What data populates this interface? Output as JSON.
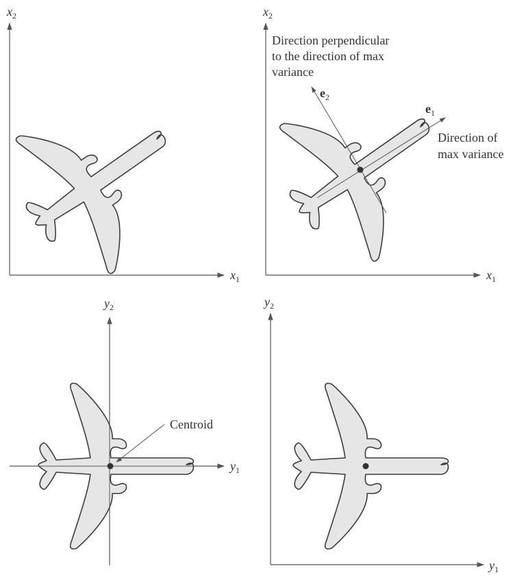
{
  "panels": {
    "top_left": {
      "x_axis": "x",
      "x_axis_sub": "1",
      "y_axis": "x",
      "y_axis_sub": "2"
    },
    "top_right": {
      "x_axis": "x",
      "x_axis_sub": "1",
      "y_axis": "x",
      "y_axis_sub": "2",
      "perp_label": [
        "Direction perpendicular",
        "to the direction of max",
        "variance"
      ],
      "max_label": [
        "Direction of",
        "max variance"
      ],
      "e1": "e",
      "e1_sub": "1",
      "e2": "e",
      "e2_sub": "2"
    },
    "bottom_left": {
      "x_axis": "y",
      "x_axis_sub": "1",
      "y_axis": "y",
      "y_axis_sub": "2",
      "centroid_label": "Centroid"
    },
    "bottom_right": {
      "x_axis": "y",
      "x_axis_sub": "1",
      "y_axis": "y",
      "y_axis_sub": "2"
    }
  }
}
